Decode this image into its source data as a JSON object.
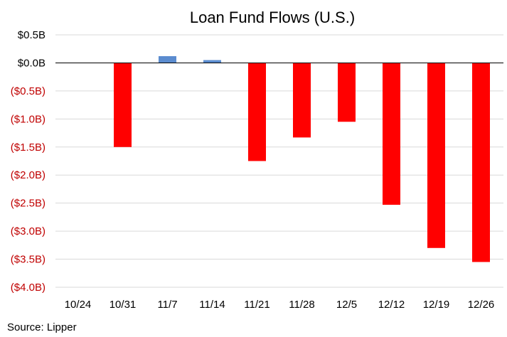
{
  "chart_data": {
    "type": "bar",
    "title": "Loan Fund Flows (U.S.)",
    "source": "Source: Lipper",
    "categories": [
      "10/24",
      "10/31",
      "11/7",
      "11/14",
      "11/21",
      "11/28",
      "12/5",
      "12/12",
      "12/19",
      "12/26"
    ],
    "values": [
      0.0,
      -1.5,
      0.12,
      0.05,
      -1.75,
      -1.33,
      -1.05,
      -2.53,
      -3.3,
      -3.55
    ],
    "units": "billions USD",
    "ylim": [
      -4.0,
      0.5
    ],
    "yticks": [
      0.5,
      0.0,
      -0.5,
      -1.0,
      -1.5,
      -2.0,
      -2.5,
      -3.0,
      -3.5,
      -4.0
    ],
    "ytick_labels": [
      "$0.5B",
      "$0.0B",
      "($0.5B)",
      "($1.0B)",
      "($1.5B)",
      "($2.0B)",
      "($2.5B)",
      "($3.0B)",
      "($3.5B)",
      "($4.0B)"
    ],
    "xlabel": "",
    "ylabel": "",
    "grid": true,
    "legend": "none",
    "colors": {
      "positive": "#5b8ccf",
      "negative": "#ff0000",
      "positive_label": "#000000",
      "negative_label": "#c00000",
      "grid": "#d9d9d9"
    }
  }
}
